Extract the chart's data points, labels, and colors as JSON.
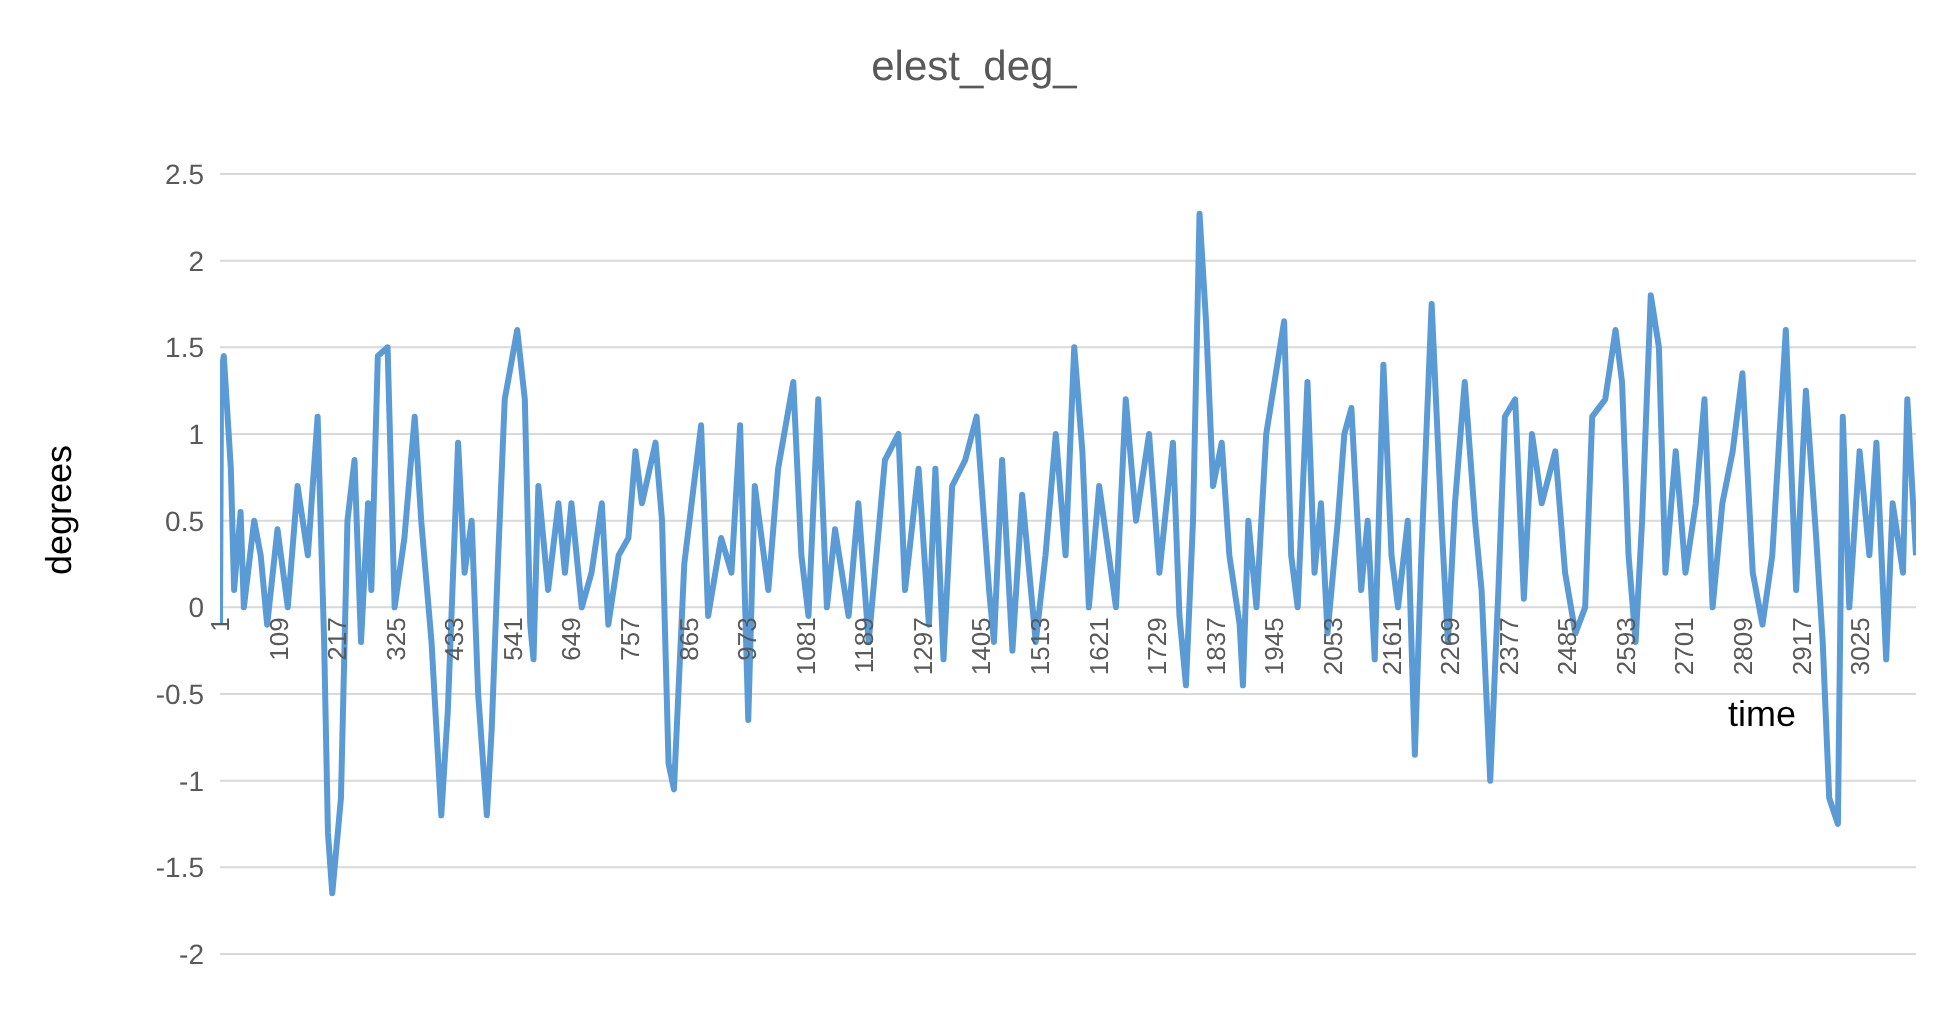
{
  "chart_data": {
    "type": "line",
    "title": "elest_deg_",
    "xlabel": "time",
    "ylabel": "degrees",
    "xlim": [
      1,
      3128
    ],
    "xticks": [
      1,
      109,
      217,
      325,
      433,
      541,
      649,
      757,
      865,
      973,
      1081,
      1189,
      1297,
      1405,
      1513,
      1621,
      1729,
      1837,
      1945,
      2053,
      2161,
      2269,
      2377,
      2485,
      2593,
      2701,
      2809,
      2917,
      3025
    ],
    "ylim": [
      -2,
      2.5
    ],
    "yticks": [
      -2,
      -1.5,
      -1,
      -0.5,
      0,
      0.5,
      1,
      1.5,
      2,
      2.5
    ],
    "grid": "y",
    "marker": "none",
    "line_style": "solid",
    "series": [
      {
        "color": "#5b9bd5",
        "x": [
          1,
          3,
          8,
          21,
          27,
          39,
          45,
          64,
          76,
          88,
          107,
          126,
          144,
          163,
          181,
          193,
          200,
          208,
          224,
          236,
          249,
          261,
          274,
          280,
          292,
          310,
          323,
          341,
          360,
          372,
          391,
          409,
          421,
          440,
          452,
          465,
          477,
          493,
          502,
          514,
          526,
          549,
          563,
          573,
          579,
          588,
          606,
          625,
          637,
          649,
          668,
          686,
          705,
          717,
          736,
          754,
          767,
          779,
          804,
          816,
          828,
          838,
          857,
          888,
          901,
          925,
          944,
          960,
          975,
          987,
          1012,
          1030,
          1058,
          1073,
          1086,
          1104,
          1120,
          1135,
          1160,
          1178,
          1197,
          1227,
          1252,
          1264,
          1289,
          1308,
          1320,
          1335,
          1351,
          1375,
          1396,
          1419,
          1428,
          1443,
          1462,
          1480,
          1505,
          1523,
          1542,
          1560,
          1576,
          1591,
          1603,
          1622,
          1653,
          1671,
          1690,
          1714,
          1733,
          1758,
          1770,
          1782,
          1795,
          1807,
          1819,
          1832,
          1848,
          1862,
          1881,
          1887,
          1897,
          1912,
          1930,
          1963,
          1976,
          1988,
          2006,
          2019,
          2031,
          2043,
          2062,
          2074,
          2087,
          2105,
          2117,
          2130,
          2146,
          2161,
          2173,
          2191,
          2204,
          2216,
          2235,
          2253,
          2265,
          2278,
          2296,
          2315,
          2327,
          2343,
          2358,
          2370,
          2389,
          2405,
          2420,
          2438,
          2463,
          2481,
          2500,
          2518,
          2531,
          2555,
          2574,
          2586,
          2598,
          2611,
          2623,
          2639,
          2654,
          2666,
          2685,
          2703,
          2722,
          2738,
          2753,
          2771,
          2790,
          2808,
          2827,
          2845,
          2863,
          2888,
          2907,
          2925,
          2944,
          2956,
          2968,
          2984,
          2993,
          3005,
          3024,
          3042,
          3055,
          3073,
          3085,
          3104,
          3112,
          3128
        ],
        "values": [
          -0.1,
          1.35,
          1.45,
          0.8,
          0.1,
          0.55,
          0,
          0.5,
          0.3,
          -0.1,
          0.45,
          0,
          0.7,
          0.3,
          1.1,
          -0.2,
          -1.3,
          -1.65,
          -1.1,
          0.5,
          0.85,
          -0.2,
          0.6,
          0.1,
          1.45,
          1.5,
          0,
          0.4,
          1.1,
          0.5,
          -0.2,
          -1.2,
          -0.6,
          0.95,
          0.2,
          0.5,
          -0.5,
          -1.2,
          -0.7,
          0.3,
          1.2,
          1.6,
          1.2,
          -0.1,
          -0.3,
          0.7,
          0.1,
          0.6,
          0.2,
          0.6,
          0,
          0.2,
          0.6,
          -0.1,
          0.3,
          0.4,
          0.9,
          0.6,
          0.95,
          0.5,
          -0.9,
          -1.05,
          0.25,
          1.05,
          -0.05,
          0.4,
          0.2,
          1.05,
          -0.65,
          0.7,
          0.1,
          0.8,
          1.3,
          0.3,
          -0.05,
          1.2,
          0,
          0.45,
          -0.05,
          0.6,
          -0.2,
          0.85,
          1,
          0.1,
          0.8,
          -0.1,
          0.8,
          -0.3,
          0.7,
          0.85,
          1.1,
          0.1,
          -0.2,
          0.85,
          -0.25,
          0.65,
          -0.2,
          0.3,
          1,
          0.3,
          1.5,
          0.9,
          0,
          0.7,
          0,
          1.2,
          0.5,
          1,
          0.2,
          0.95,
          -0.05,
          -0.45,
          0.5,
          2.27,
          1.65,
          0.7,
          0.95,
          0.3,
          -0.1,
          -0.45,
          0.5,
          0,
          1,
          1.65,
          0.3,
          0,
          1.3,
          0.2,
          0.6,
          -0.15,
          0.5,
          1,
          1.15,
          0.1,
          0.5,
          -0.3,
          1.4,
          0.3,
          0,
          0.5,
          -0.85,
          0.3,
          1.75,
          0.5,
          -0.2,
          0.6,
          1.3,
          0.5,
          0.1,
          -1,
          0.1,
          1.1,
          1.2,
          0.05,
          1,
          0.6,
          0.9,
          0.2,
          -0.15,
          0,
          1.1,
          1.2,
          1.6,
          1.3,
          0.3,
          -0.2,
          0.5,
          1.8,
          1.5,
          0.2,
          0.9,
          0.2,
          0.6,
          1.2,
          0,
          0.6,
          0.9,
          1.35,
          0.2,
          -0.1,
          0.3,
          1.6,
          0.1,
          1.25,
          0.4,
          -0.2,
          -1.1,
          -1.25,
          1.1,
          0,
          0.9,
          0.3,
          0.95,
          -0.3,
          0.6,
          0.2,
          1.2,
          0.3
        ]
      }
    ]
  }
}
